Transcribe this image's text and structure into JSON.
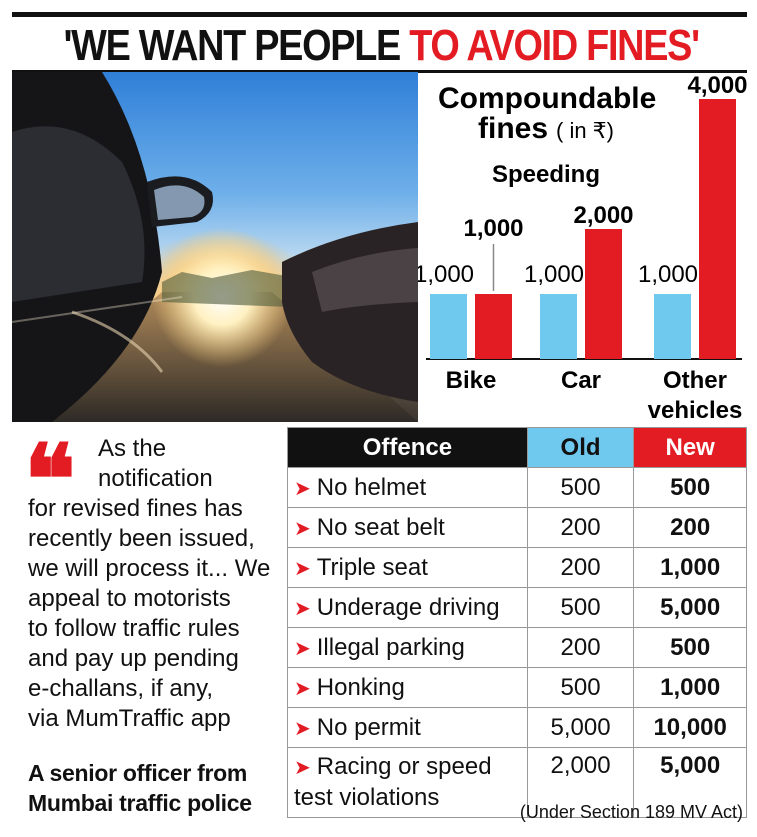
{
  "headline": {
    "black": "'WE WANT PEOPLE ",
    "red": "TO AVOID FINES'"
  },
  "colors": {
    "accent": "#e31b23",
    "old": "#6fc8ee",
    "new": "#e31b23",
    "header": "#111111"
  },
  "chart_data": {
    "type": "bar",
    "title": "Compoundable fines",
    "title_unit": "( in ₹)",
    "subtitle": "Speeding",
    "categories": [
      "Bike",
      "Car",
      "Other vehicles"
    ],
    "category_lines": [
      [
        "Bike"
      ],
      [
        "Car"
      ],
      [
        "Other",
        "vehicles"
      ]
    ],
    "series": [
      {
        "color": "#6fc8ee",
        "values": [
          1000,
          1000,
          1000
        ]
      },
      {
        "color": "#e31b23",
        "values": [
          1000,
          2000,
          4000
        ]
      }
    ],
    "value_labels": [
      [
        "1,000",
        "1,000",
        "1,000"
      ],
      [
        "1,000",
        "2,000",
        "4,000"
      ]
    ],
    "ylim": [
      0,
      4000
    ],
    "grid": false
  },
  "quote": {
    "lines": [
      "As the",
      "notification",
      "for revised fines has",
      "recently been issued,",
      "we will process it... We",
      "appeal to motorists",
      "to follow traffic rules",
      "and pay up pending",
      "e-challans, if any,",
      "via MumTraffic app"
    ],
    "attribution": [
      "A senior officer from",
      "Mumbai traffic police"
    ]
  },
  "table": {
    "headers": {
      "offence": "Offence",
      "old": "Old",
      "new": "New"
    },
    "rows": [
      {
        "offence": "No helmet",
        "old": "500",
        "new": "500"
      },
      {
        "offence": "No seat belt",
        "old": "200",
        "new": "200"
      },
      {
        "offence": "Triple seat",
        "old": "200",
        "new": "1,000"
      },
      {
        "offence": "Underage driving",
        "old": "500",
        "new": "5,000"
      },
      {
        "offence": "Illegal parking",
        "old": "200",
        "new": "500"
      },
      {
        "offence": "Honking",
        "old": "500",
        "new": "1,000"
      },
      {
        "offence": "No permit",
        "old": "5,000",
        "new": "10,000"
      },
      {
        "offence": "Racing or speed",
        "old": "2,000",
        "new": "5,000"
      }
    ],
    "last_row_extra": "test violations",
    "note": "(Under Section 189 MV Act)"
  }
}
